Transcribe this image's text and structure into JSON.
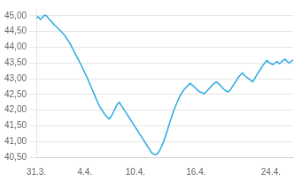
{
  "chart_data": {
    "type": "line",
    "color": "#29abe2",
    "grid": true,
    "ylim": [
      40.5,
      45.25
    ],
    "yticks": [
      {
        "value": 40.5,
        "label": "40,50"
      },
      {
        "value": 41.0,
        "label": "41,00"
      },
      {
        "value": 41.5,
        "label": "41,50"
      },
      {
        "value": 42.0,
        "label": "42,00"
      },
      {
        "value": 42.5,
        "label": "42,50"
      },
      {
        "value": 43.0,
        "label": "43,00"
      },
      {
        "value": 43.5,
        "label": "43,50"
      },
      {
        "value": 44.0,
        "label": "44,00"
      },
      {
        "value": 44.5,
        "label": "44,50"
      },
      {
        "value": 45.0,
        "label": "45,00"
      }
    ],
    "categories": [
      "31.3.",
      null,
      null,
      null,
      null,
      null,
      null,
      null,
      null,
      null,
      null,
      null,
      null,
      null,
      null,
      null,
      null,
      null,
      null,
      null,
      null,
      null,
      null,
      null,
      "4.4.",
      null,
      null,
      null,
      null,
      null,
      null,
      null,
      null,
      null,
      null,
      null,
      null,
      null,
      null,
      null,
      null,
      null,
      null,
      null,
      null,
      null,
      null,
      null,
      null,
      "10.4.",
      null,
      null,
      null,
      null,
      null,
      null,
      null,
      null,
      null,
      null,
      null,
      null,
      null,
      null,
      null,
      null,
      null,
      null,
      null,
      null,
      null,
      null,
      null,
      null,
      null,
      null,
      null,
      null,
      null,
      "16.4.",
      null,
      null,
      null,
      null,
      null,
      null,
      null,
      null,
      null,
      null,
      null,
      null,
      null,
      null,
      null,
      null,
      null,
      null,
      null,
      null,
      null,
      null,
      null,
      null,
      null,
      null,
      null,
      null,
      null,
      null,
      null,
      null,
      null,
      null,
      null,
      null,
      "24.4.",
      null,
      null,
      null,
      null,
      null,
      null,
      null,
      null,
      null,
      null,
      null
    ],
    "values": [
      44.93,
      44.97,
      44.88,
      44.95,
      45.02,
      45.0,
      44.92,
      44.85,
      44.78,
      44.7,
      44.65,
      44.58,
      44.52,
      44.45,
      44.38,
      44.28,
      44.18,
      44.08,
      43.95,
      43.82,
      43.7,
      43.58,
      43.45,
      43.32,
      43.18,
      43.05,
      42.9,
      42.75,
      42.6,
      42.45,
      42.3,
      42.15,
      42.05,
      41.95,
      41.85,
      41.78,
      41.72,
      41.8,
      41.92,
      42.05,
      42.18,
      42.25,
      42.15,
      42.05,
      41.95,
      41.85,
      41.75,
      41.65,
      41.55,
      41.45,
      41.35,
      41.25,
      41.15,
      41.05,
      40.95,
      40.85,
      40.75,
      40.65,
      40.6,
      40.58,
      40.62,
      40.72,
      40.85,
      41.0,
      41.2,
      41.4,
      41.6,
      41.8,
      42.0,
      42.15,
      42.3,
      42.45,
      42.55,
      42.65,
      42.72,
      42.78,
      42.85,
      42.8,
      42.75,
      42.68,
      42.62,
      42.58,
      42.55,
      42.52,
      42.58,
      42.65,
      42.72,
      42.8,
      42.85,
      42.9,
      42.85,
      42.78,
      42.72,
      42.65,
      42.6,
      42.58,
      42.65,
      42.75,
      42.85,
      42.95,
      43.05,
      43.12,
      43.18,
      43.1,
      43.05,
      43.0,
      42.95,
      42.9,
      43.0,
      43.12,
      43.22,
      43.32,
      43.42,
      43.5,
      43.58,
      43.52,
      43.48,
      43.45,
      43.5,
      43.55,
      43.48,
      43.52,
      43.58,
      43.62,
      43.55,
      43.5,
      43.55,
      43.6
    ]
  }
}
